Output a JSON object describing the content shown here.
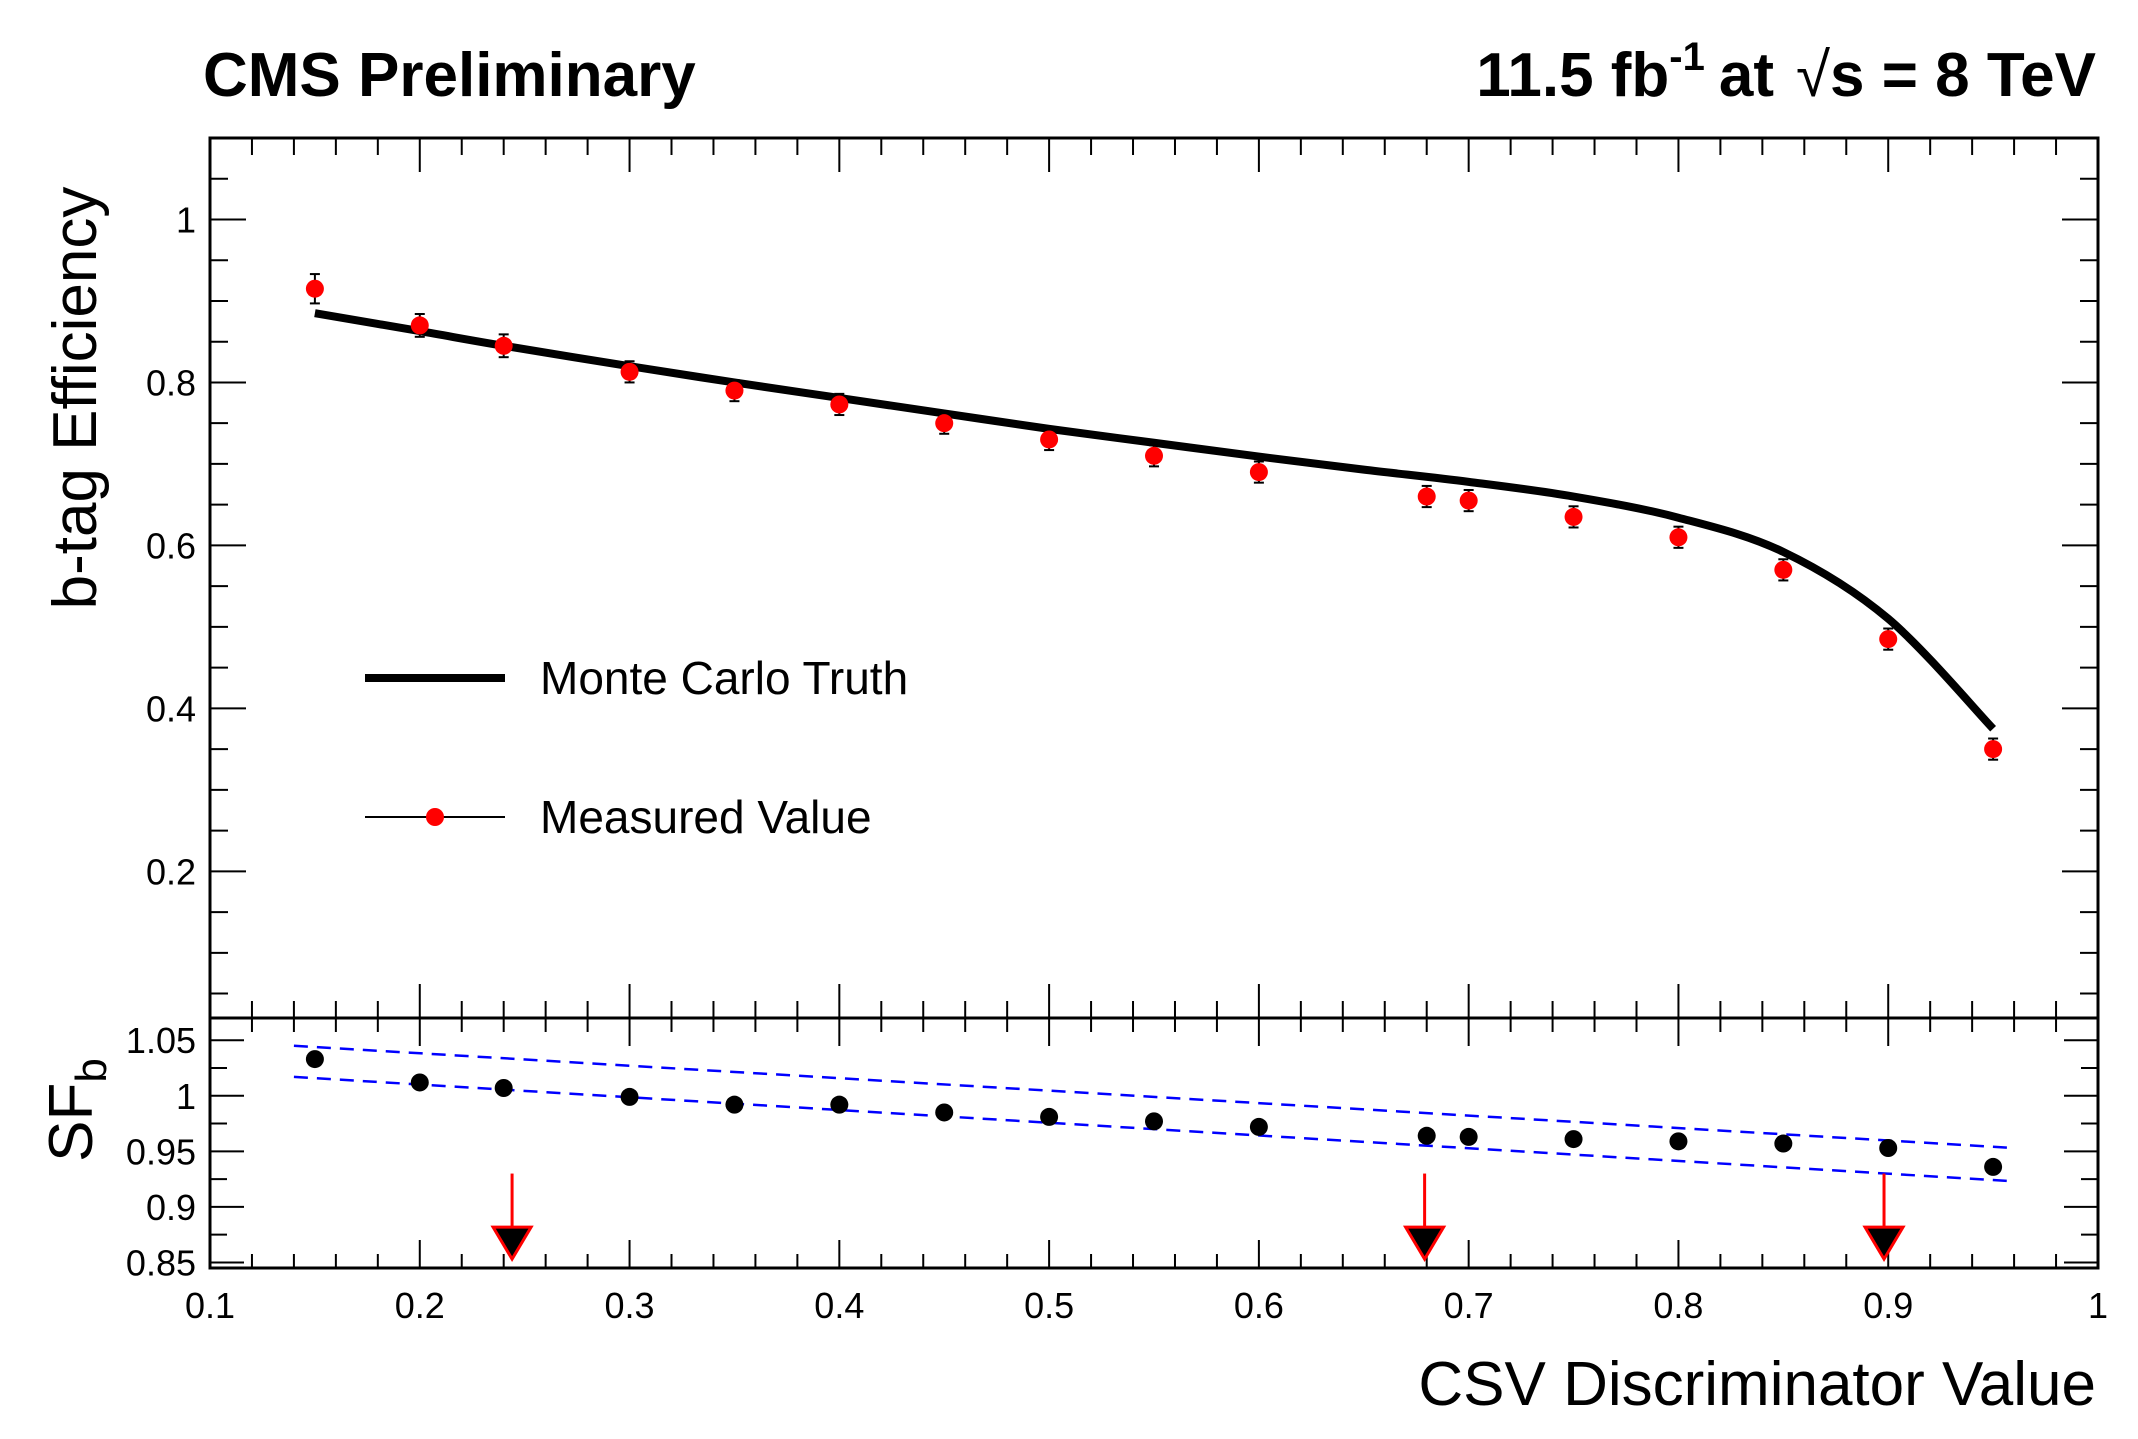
{
  "header": {
    "left": "CMS Preliminary",
    "lumi_value": "11.5 fb",
    "lumi_exp": "-1",
    "lumi_at": "at",
    "sqrt_sym": "√",
    "energy_text": "s = 8 TeV"
  },
  "legend": {
    "mc_label": "Monte Carlo Truth",
    "data_label": "Measured Value"
  },
  "colors": {
    "marker_top": "#ff0000",
    "marker_bottom": "#000000",
    "band": "#0000ff",
    "arrow": "#ff0000",
    "axis": "#000000"
  },
  "chart_data": [
    {
      "type": "scatter",
      "panel": "top",
      "ylabel": "b-tag Efficiency",
      "xlim": [
        0.1,
        1.0
      ],
      "ylim": [
        0.02,
        1.1
      ],
      "yticks": [
        0.2,
        0.4,
        0.6,
        0.8,
        1.0
      ],
      "ytick_labels": [
        "0.2",
        "0.4",
        "0.6",
        "0.8",
        "1"
      ],
      "series": [
        {
          "name": "Measured Value",
          "x": [
            0.15,
            0.2,
            0.24,
            0.3,
            0.35,
            0.4,
            0.45,
            0.5,
            0.55,
            0.6,
            0.68,
            0.7,
            0.75,
            0.8,
            0.85,
            0.9,
            0.95
          ],
          "y": [
            0.915,
            0.87,
            0.845,
            0.813,
            0.79,
            0.773,
            0.75,
            0.73,
            0.71,
            0.69,
            0.66,
            0.655,
            0.635,
            0.61,
            0.57,
            0.485,
            0.35
          ],
          "yerr": [
            0.018,
            0.014,
            0.014,
            0.013,
            0.013,
            0.013,
            0.013,
            0.013,
            0.013,
            0.013,
            0.013,
            0.013,
            0.013,
            0.013,
            0.013,
            0.013,
            0.013
          ]
        },
        {
          "name": "Monte Carlo Truth",
          "x": [
            0.15,
            0.2,
            0.24,
            0.3,
            0.35,
            0.4,
            0.45,
            0.5,
            0.55,
            0.6,
            0.65,
            0.7,
            0.75,
            0.8,
            0.85,
            0.9,
            0.95
          ],
          "y": [
            0.885,
            0.863,
            0.845,
            0.82,
            0.8,
            0.781,
            0.762,
            0.743,
            0.726,
            0.709,
            0.693,
            0.678,
            0.66,
            0.634,
            0.592,
            0.51,
            0.375
          ]
        }
      ]
    },
    {
      "type": "scatter",
      "panel": "bottom",
      "ylabel": "SF",
      "ylabel_sub": "b",
      "xlabel": "CSV Discriminator Value",
      "xlim": [
        0.1,
        1.0
      ],
      "ylim": [
        0.845,
        1.07
      ],
      "xticks": [
        0.1,
        0.2,
        0.3,
        0.4,
        0.5,
        0.6,
        0.7,
        0.8,
        0.9,
        1.0
      ],
      "xtick_labels": [
        "0.1",
        "0.2",
        "0.3",
        "0.4",
        "0.5",
        "0.6",
        "0.7",
        "0.8",
        "0.9",
        "1"
      ],
      "yticks": [
        0.85,
        0.9,
        0.95,
        1.0,
        1.05
      ],
      "ytick_labels": [
        "0.85",
        "0.9",
        "0.95",
        "1",
        "1.05"
      ],
      "points": {
        "x": [
          0.15,
          0.2,
          0.24,
          0.3,
          0.35,
          0.4,
          0.45,
          0.5,
          0.55,
          0.6,
          0.68,
          0.7,
          0.75,
          0.8,
          0.85,
          0.9,
          0.95
        ],
        "y": [
          1.033,
          1.012,
          1.007,
          0.999,
          0.992,
          0.992,
          0.985,
          0.981,
          0.977,
          0.972,
          0.964,
          0.963,
          0.961,
          0.959,
          0.957,
          0.953,
          0.936
        ]
      },
      "band": {
        "x": [
          0.14,
          0.96
        ],
        "upper": [
          1.045,
          0.953
        ],
        "lower": [
          1.017,
          0.923
        ]
      },
      "working_points": [
        0.244,
        0.679,
        0.898
      ]
    }
  ]
}
